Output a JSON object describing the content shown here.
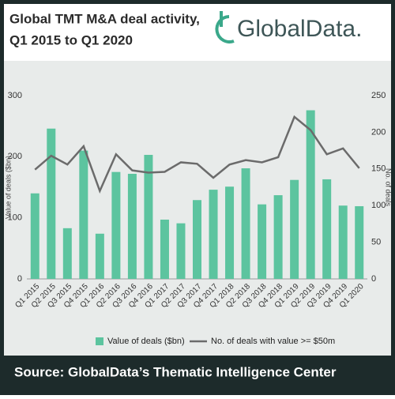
{
  "chart_data": {
    "type": "bar-line",
    "title": [
      "Global TMT M&A deal activity,",
      "Q1 2015 to Q1 2020"
    ],
    "categories": [
      "Q1 2015",
      "Q2 2015",
      "Q3 2015",
      "Q4 2015",
      "Q1 2016",
      "Q2 2016",
      "Q3 2016",
      "Q4 2016",
      "Q1 2017",
      "Q2 2017",
      "Q3 2017",
      "Q4 2017",
      "Q1 2018",
      "Q2 2018",
      "Q3 2018",
      "Q4 2018",
      "Q1 2019",
      "Q2 2019",
      "Q3 2019",
      "Q4 2019",
      "Q1 2020"
    ],
    "series": [
      {
        "name": "Value of deals ($bn)",
        "type": "bar",
        "color": "#5cc49f",
        "values": [
          140,
          246,
          83,
          210,
          74,
          175,
          172,
          203,
          97,
          91,
          129,
          146,
          151,
          181,
          122,
          137,
          162,
          276,
          163,
          120,
          119
        ]
      },
      {
        "name": "No. of deals with value >= $50m",
        "type": "line",
        "axis": "y2",
        "color": "#6b6b6b",
        "values": [
          149,
          168,
          156,
          181,
          120,
          170,
          148,
          145,
          146,
          159,
          157,
          138,
          156,
          162,
          159,
          166,
          221,
          203,
          170,
          178,
          151
        ]
      }
    ],
    "y_label": "Value of deals ($bn)",
    "y2_label": "No. of deals",
    "ylim": [
      0,
      300
    ],
    "yticks": [
      0,
      100,
      200,
      300
    ],
    "y2lim": [
      0,
      250
    ],
    "y2ticks": [
      0,
      50,
      100,
      150,
      200,
      250
    ],
    "grid": false,
    "legend": "bottom"
  },
  "logo": "GlobalData.",
  "source": "Source:  GlobalData’s Thematic Intelligence Center"
}
